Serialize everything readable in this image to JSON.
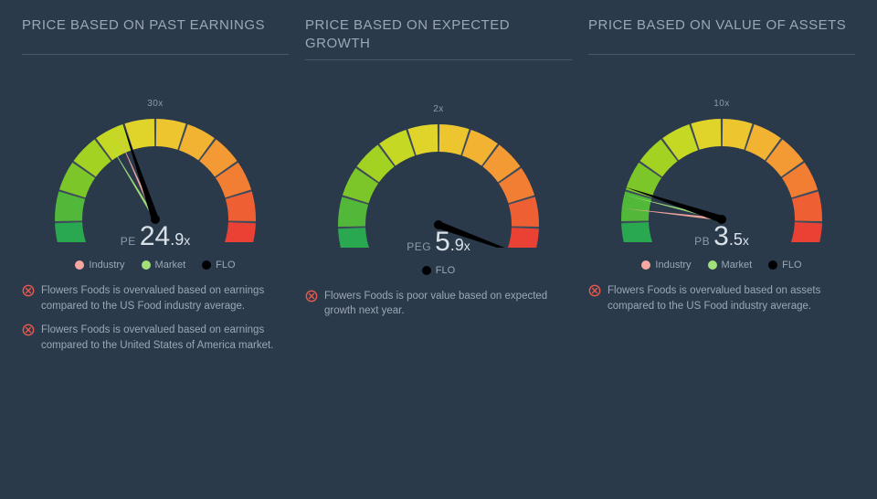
{
  "background_color": "#2b3a4a",
  "text_muted": "#9aa7b6",
  "text_value": "#d9e0e8",
  "divider_color": "#4a5866",
  "gauge": {
    "track_color": "#3d4b5b",
    "segments": 12,
    "segment_colors": [
      "#2aa84f",
      "#52b83a",
      "#7cc62a",
      "#a3d222",
      "#c5d824",
      "#e0d32a",
      "#ecc52f",
      "#f2b232",
      "#f49a34",
      "#f27e34",
      "#ee6034",
      "#e94234"
    ],
    "needle_color": "#000000"
  },
  "legend_colors": {
    "industry": "#f6a7a0",
    "market": "#a3e07a",
    "flo": "#000000"
  },
  "panels": [
    {
      "title": "PRICE BASED ON PAST EARNINGS",
      "metric": "PE",
      "value_int": "24",
      "value_dec": ".9",
      "value_suffix": "x",
      "max": 60,
      "tick_min": "0x",
      "tick_mid": "30x",
      "tick_max": "60x",
      "flo_value": 24.9,
      "industry_value": 23.5,
      "market_value": 21.5,
      "legend": [
        "industry",
        "market",
        "flo"
      ],
      "notes": [
        "Flowers Foods is overvalued based on earnings compared to the US Food industry average.",
        "Flowers Foods is overvalued based on earnings compared to the United States of America market."
      ]
    },
    {
      "title": "PRICE BASED ON EXPECTED GROWTH",
      "metric": "PEG",
      "value_int": "5",
      "value_dec": ".9",
      "value_suffix": "x",
      "max": 4,
      "tick_min": "0x",
      "tick_mid": "2x",
      "tick_max": "4x",
      "flo_value": 4,
      "industry_value": null,
      "market_value": null,
      "legend": [
        "flo"
      ],
      "notes": [
        "Flowers Foods is poor value based on expected growth next year."
      ]
    },
    {
      "title": "PRICE BASED ON VALUE OF ASSETS",
      "metric": "PB",
      "value_int": "3",
      "value_dec": ".5",
      "value_suffix": "x",
      "max": 20,
      "tick_min": "0x",
      "tick_mid": "10x",
      "tick_max": "20x",
      "flo_value": 3.5,
      "industry_value": 2.4,
      "market_value": 3.1,
      "legend": [
        "industry",
        "market",
        "flo"
      ],
      "notes": [
        "Flowers Foods is overvalued based on assets compared to the US Food industry average."
      ]
    }
  ],
  "legend_labels": {
    "industry": "Industry",
    "market": "Market",
    "flo": "FLO"
  },
  "note_icon_color": "#e8584d"
}
